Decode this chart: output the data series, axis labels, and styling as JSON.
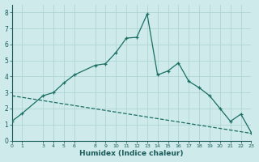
{
  "xlabel": "Humidex (Indice chaleur)",
  "bg_color": "#ceeaea",
  "grid_color": "#b0d4d4",
  "line_color": "#1a6e64",
  "xlim": [
    0,
    23
  ],
  "ylim": [
    0,
    8.5
  ],
  "ytick_max": 8,
  "xticks": [
    0,
    1,
    3,
    4,
    5,
    6,
    8,
    9,
    10,
    11,
    12,
    13,
    14,
    15,
    16,
    17,
    18,
    19,
    20,
    21,
    22,
    23
  ],
  "yticks": [
    0,
    1,
    2,
    3,
    4,
    5,
    6,
    7,
    8
  ],
  "main_x": [
    0,
    1,
    3,
    4,
    5,
    6,
    8,
    9,
    10,
    11,
    12,
    13,
    14,
    15,
    16,
    17,
    18,
    19,
    20,
    21,
    22,
    23
  ],
  "main_y": [
    1.2,
    1.7,
    2.8,
    3.0,
    3.6,
    4.1,
    4.7,
    4.8,
    5.5,
    6.4,
    6.45,
    7.9,
    4.1,
    4.35,
    4.85,
    3.7,
    3.3,
    2.8,
    2.0,
    1.2,
    1.65,
    0.5
  ],
  "trend_x": [
    0,
    23
  ],
  "trend_y": [
    2.8,
    0.45
  ]
}
